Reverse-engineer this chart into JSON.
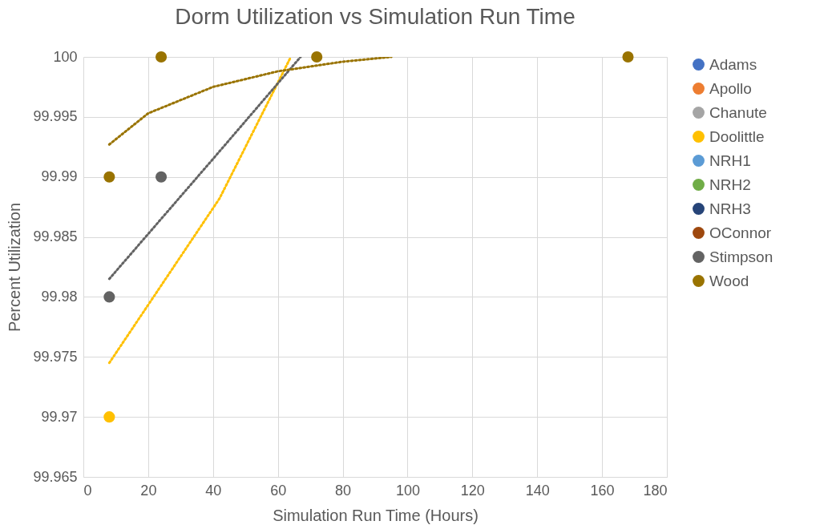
{
  "chart_data": {
    "type": "scatter",
    "title": "Dorm Utilization vs Simulation Run Time",
    "xlabel": "Simulation Run Time (Hours)",
    "ylabel": "Percent Utilization",
    "x": [
      8,
      24,
      72,
      168
    ],
    "xlim": [
      0,
      180
    ],
    "xticks": [
      0,
      20,
      40,
      60,
      80,
      100,
      120,
      140,
      160,
      180
    ],
    "ylim": [
      99.965,
      100
    ],
    "yticks": [
      99.965,
      99.97,
      99.975,
      99.98,
      99.985,
      99.99,
      99.995,
      100
    ],
    "grid": true,
    "legend": "right",
    "marker": "circle",
    "series": [
      {
        "name": "Adams",
        "color": "#4472c4",
        "values": [
          null,
          null,
          null,
          null
        ]
      },
      {
        "name": "Apollo",
        "color": "#ed7d31",
        "values": [
          null,
          null,
          null,
          null
        ]
      },
      {
        "name": "Chanute",
        "color": "#a5a5a5",
        "values": [
          null,
          null,
          null,
          null
        ]
      },
      {
        "name": "Doolittle",
        "color": "#ffc000",
        "values": [
          99.97,
          null,
          null,
          null
        ]
      },
      {
        "name": "NRH1",
        "color": "#5b9bd5",
        "values": [
          null,
          null,
          null,
          null
        ]
      },
      {
        "name": "NRH2",
        "color": "#70ad47",
        "values": [
          null,
          null,
          null,
          null
        ]
      },
      {
        "name": "NRH3",
        "color": "#264478",
        "values": [
          null,
          null,
          null,
          null
        ]
      },
      {
        "name": "OConnor",
        "color": "#9e480e",
        "values": [
          null,
          null,
          null,
          null
        ]
      },
      {
        "name": "Stimpson",
        "color": "#636363",
        "values": [
          99.98,
          99.99,
          null,
          null
        ]
      },
      {
        "name": "Wood",
        "color": "#997300",
        "values": [
          99.99,
          100,
          100,
          100
        ]
      },
      {
        "type": "line",
        "marker": "none",
        "line_style": "dotted",
        "color": "#ffc000",
        "x": [
          8,
          42,
          64
        ],
        "values": [
          99.9745,
          99.9882,
          100
        ]
      },
      {
        "type": "line",
        "marker": "none",
        "line_style": "dotted",
        "color": "#636363",
        "x": [
          8,
          40,
          67
        ],
        "values": [
          99.9815,
          99.9915,
          100
        ]
      },
      {
        "type": "line",
        "marker": "none",
        "line_style": "dotted",
        "color": "#997300",
        "x": [
          8,
          20,
          40,
          60,
          80,
          95
        ],
        "values": [
          99.9927,
          99.9953,
          99.9975,
          99.9988,
          99.9996,
          100
        ]
      }
    ]
  }
}
